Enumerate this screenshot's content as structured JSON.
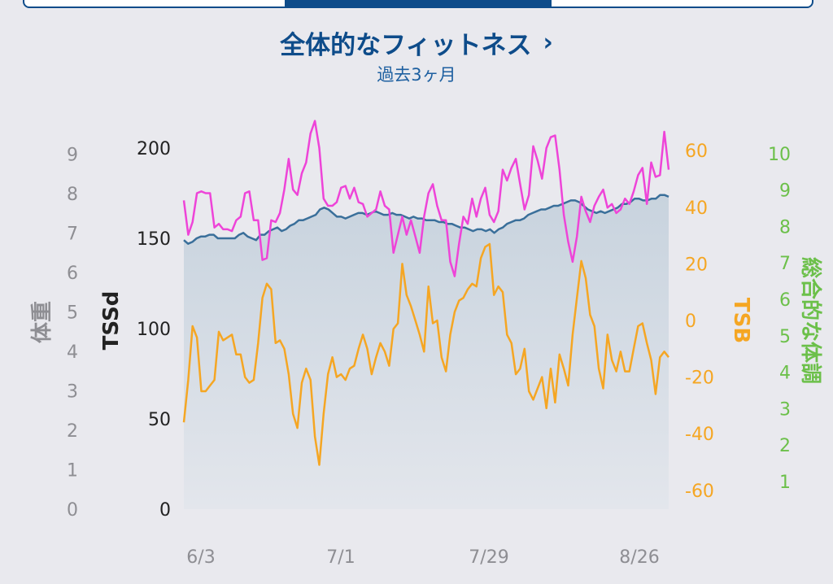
{
  "header": {
    "title": "全体的なフィットネス",
    "chevron": "›",
    "subtitle": "過去3ヶ月"
  },
  "colors": {
    "weight": "#8e8e93",
    "tss": "#222222",
    "tsb": "#f5a623",
    "overall": "#6cc04a",
    "fitness_line": "#3a6f9a",
    "pink_line": "#ee44d8",
    "area_top": "#c8d3de",
    "area_bottom": "#e3e6ec",
    "accent": "#0e4c8a"
  },
  "chart_data": {
    "type": "line",
    "x_ticks": [
      "6/3",
      "7/1",
      "7/29",
      "8/26"
    ],
    "axes": {
      "weight": {
        "label": "体重",
        "ticks": [
          "0",
          "1",
          "2",
          "3",
          "4",
          "5",
          "6",
          "7",
          "8",
          "9"
        ]
      },
      "tss": {
        "label": "TSSd",
        "ticks": [
          "0",
          "50",
          "100",
          "150",
          "200"
        ],
        "ylim": [
          0,
          200
        ]
      },
      "tsb": {
        "label": "TSB",
        "ticks": [
          "-60",
          "-40",
          "-20",
          "0",
          "20",
          "40",
          "60"
        ],
        "ylim": [
          -60,
          60
        ]
      },
      "overall": {
        "label": "総合的な体調",
        "ticks": [
          "1",
          "2",
          "3",
          "4",
          "5",
          "6",
          "7",
          "8",
          "9",
          "10"
        ]
      }
    },
    "series": [
      {
        "key": "fitness",
        "axis": "tss",
        "fill": true,
        "values": [
          149,
          147,
          148,
          150,
          151,
          151,
          152,
          152,
          150,
          150,
          150,
          150,
          150,
          152,
          153,
          151,
          150,
          149,
          152,
          152,
          154,
          155,
          156,
          154,
          155,
          157,
          158,
          160,
          160,
          161,
          162,
          163,
          166,
          167,
          166,
          164,
          162,
          162,
          161,
          162,
          163,
          164,
          164,
          163,
          164,
          165,
          164,
          163,
          163,
          164,
          163,
          163,
          162,
          161,
          162,
          161,
          161,
          160,
          160,
          160,
          159,
          159,
          158,
          158,
          157,
          156,
          156,
          155,
          154,
          155,
          155,
          154,
          155,
          153,
          155,
          156,
          158,
          159,
          160,
          160,
          161,
          163,
          164,
          165,
          166,
          166,
          167,
          168,
          168,
          169,
          170,
          171,
          171,
          170,
          168,
          166,
          165,
          164,
          165,
          164,
          165,
          166,
          167,
          169,
          169,
          170,
          172,
          172,
          171,
          171,
          172,
          172,
          174,
          174,
          173
        ]
      },
      {
        "key": "pink",
        "axis": "tss",
        "values": [
          171,
          152,
          159,
          175,
          176,
          175,
          175,
          156,
          158,
          155,
          155,
          154,
          160,
          162,
          175,
          176,
          160,
          160,
          138,
          139,
          160,
          159,
          164,
          177,
          194,
          177,
          174,
          186,
          192,
          208,
          215,
          200,
          172,
          168,
          168,
          170,
          178,
          179,
          172,
          178,
          170,
          169,
          162,
          164,
          166,
          176,
          168,
          166,
          142,
          152,
          162,
          152,
          160,
          151,
          142,
          162,
          175,
          180,
          168,
          160,
          160,
          137,
          129,
          147,
          162,
          158,
          172,
          162,
          172,
          178,
          163,
          159,
          165,
          188,
          182,
          189,
          194,
          180,
          166,
          174,
          201,
          193,
          183,
          200,
          206,
          207,
          188,
          163,
          148,
          137,
          151,
          173,
          165,
          159,
          168,
          173,
          177,
          167,
          169,
          164,
          166,
          172,
          169,
          176,
          185,
          189,
          169,
          192,
          184,
          185,
          209,
          188
        ]
      },
      {
        "key": "tsb",
        "axis": "tsb",
        "values": [
          -36,
          -21,
          -2,
          -6,
          -25,
          -25,
          -23,
          -21,
          -4,
          -7,
          -6,
          -5,
          -12,
          -12,
          -20,
          -22,
          -21,
          -8,
          8,
          13,
          11,
          -8,
          -7,
          -10,
          -19,
          -33,
          -38,
          -22,
          -17,
          -21,
          -41,
          -51,
          -33,
          -19,
          -13,
          -20,
          -19,
          -21,
          -17,
          -16,
          -10,
          -5,
          -10,
          -19,
          -13,
          -8,
          -11,
          -16,
          -3,
          -1,
          20,
          9,
          5,
          0,
          -5,
          -11,
          12,
          -1,
          0,
          -13,
          -18,
          -5,
          3,
          7,
          8,
          11,
          13,
          12,
          22,
          26,
          27,
          9,
          12,
          10,
          -5,
          -8,
          -19,
          -17,
          -10,
          -25,
          -28,
          -24,
          -20,
          -31,
          -17,
          -29,
          -12,
          -17,
          -23,
          -5,
          8,
          21,
          15,
          2,
          -2,
          -17,
          -24,
          -5,
          -14,
          -18,
          -11,
          -18,
          -18,
          -10,
          -2,
          -1,
          -8,
          -14,
          -26,
          -13,
          -11,
          -13
        ]
      }
    ]
  }
}
